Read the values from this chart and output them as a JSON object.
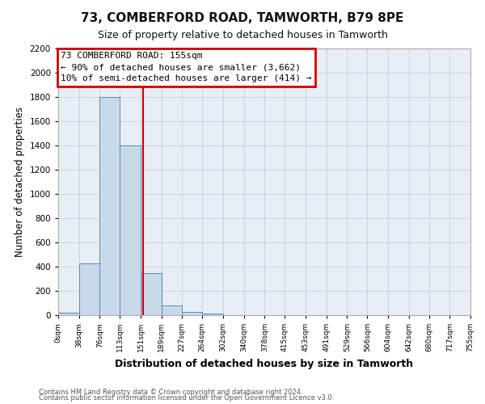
{
  "title": "73, COMBERFORD ROAD, TAMWORTH, B79 8PE",
  "subtitle": "Size of property relative to detached houses in Tamworth",
  "xlabel": "Distribution of detached houses by size in Tamworth",
  "ylabel": "Number of detached properties",
  "bin_edges": [
    0,
    38,
    76,
    113,
    151,
    189,
    227,
    264,
    302,
    340,
    378,
    415,
    453,
    491,
    529,
    566,
    604,
    642,
    680,
    717,
    755
  ],
  "bin_counts": [
    20,
    430,
    1800,
    1400,
    350,
    80,
    25,
    15,
    0,
    0,
    0,
    0,
    0,
    0,
    0,
    0,
    0,
    0,
    0,
    0
  ],
  "bar_color": "#c8daea",
  "bar_edge_color": "#5588bb",
  "red_line_x": 155,
  "ylim": [
    0,
    2200
  ],
  "yticks": [
    0,
    200,
    400,
    600,
    800,
    1000,
    1200,
    1400,
    1600,
    1800,
    2000,
    2200
  ],
  "annotation_text_line1": "73 COMBERFORD ROAD: 155sqm",
  "annotation_text_line2": "← 90% of detached houses are smaller (3,662)",
  "annotation_text_line3": "10% of semi-detached houses are larger (414) →",
  "annotation_box_color": "#ffffff",
  "annotation_border_color": "#cc0000",
  "footnote1": "Contains HM Land Registry data © Crown copyright and database right 2024.",
  "footnote2": "Contains public sector information licensed under the Open Government Licence v3.0.",
  "background_color": "#ffffff",
  "plot_bg_color": "#e8eef5",
  "grid_color": "#c0c8d4"
}
